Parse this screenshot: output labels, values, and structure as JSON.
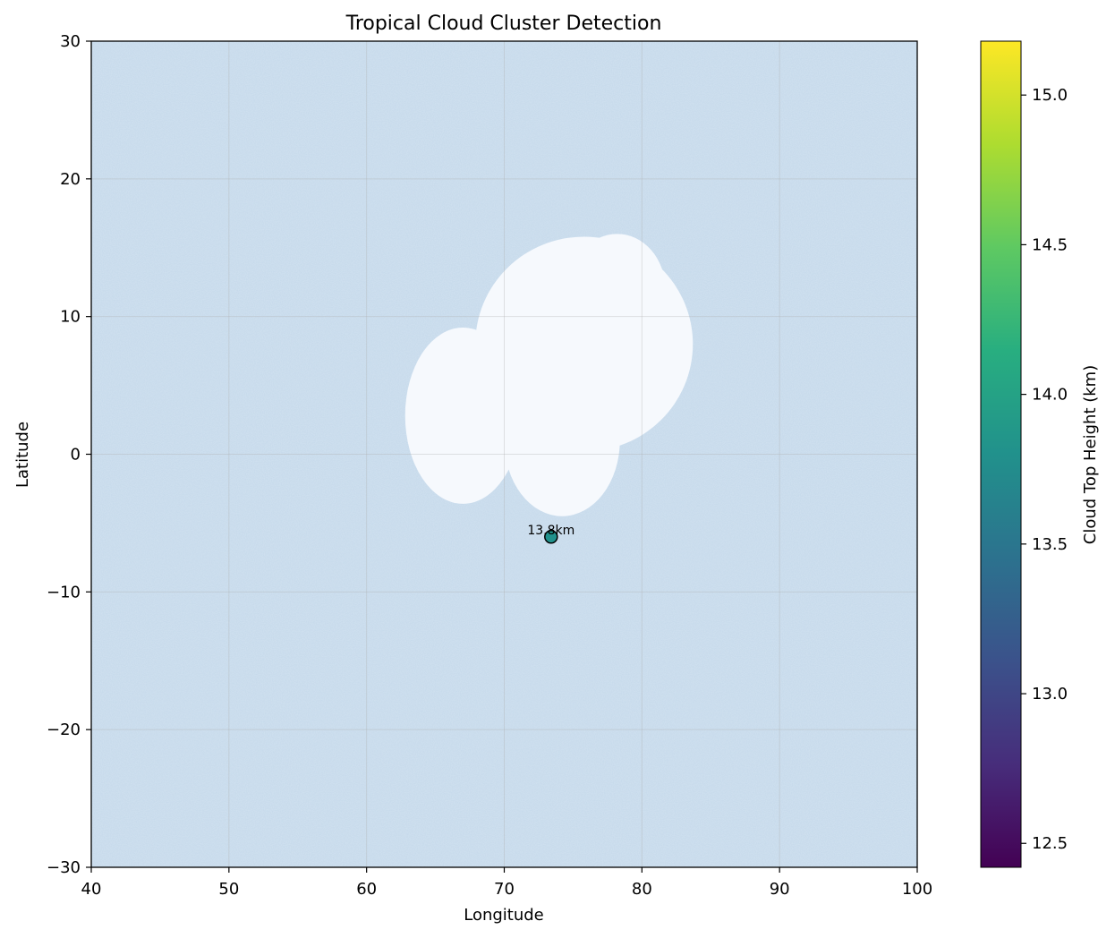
{
  "chart_data": {
    "type": "scatter",
    "title": "Tropical Cloud Cluster Detection",
    "xlabel": "Longitude",
    "ylabel": "Latitude",
    "xlim": [
      40,
      100
    ],
    "ylim": [
      -30,
      30
    ],
    "xticks": [
      40,
      50,
      60,
      70,
      80,
      90,
      100
    ],
    "yticks": [
      -30,
      -20,
      -10,
      0,
      10,
      20,
      30
    ],
    "grid": true,
    "background_field": {
      "description": "noisy satellite field",
      "cloud_blobs": [
        {
          "cx": 75.8,
          "cy": 8.0,
          "rx": 7.9,
          "ry": 7.8
        },
        {
          "cx": 78.2,
          "cy": 12.0,
          "rx": 3.5,
          "ry": 4.0
        },
        {
          "cx": 67.0,
          "cy": 2.8,
          "rx": 4.2,
          "ry": 6.4
        },
        {
          "cx": 74.2,
          "cy": 1.0,
          "rx": 4.2,
          "ry": 5.5
        }
      ]
    },
    "points": [
      {
        "x": 73.4,
        "y": -6.0,
        "value": 13.8,
        "label": "13.8km"
      }
    ],
    "colorbar": {
      "label": "Cloud Top Height (km)",
      "min": 12.42,
      "max": 15.18,
      "ticks": [
        12.5,
        13.0,
        13.5,
        14.0,
        14.5,
        15.0
      ],
      "colormap": "viridis"
    }
  }
}
